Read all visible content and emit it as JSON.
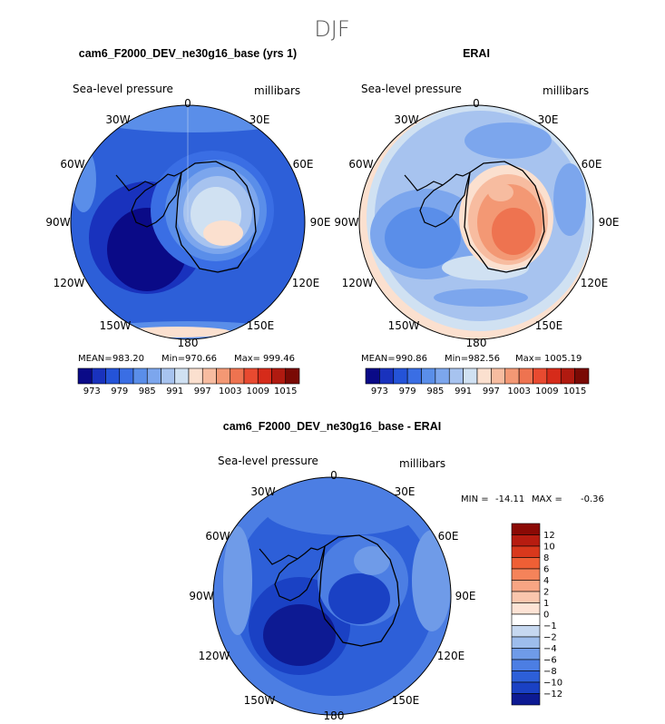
{
  "figure": {
    "suptitle": "DJF",
    "variable": "Sea-level pressure",
    "units": "millibars",
    "lon_labels": [
      "0",
      "30E",
      "60E",
      "90E",
      "120E",
      "150E",
      "180",
      "150W",
      "120W",
      "90W",
      "60W",
      "30W"
    ]
  },
  "chart_data": [
    {
      "type": "heatmap",
      "projection": "south-polar-stereographic",
      "title": "cam6_F2000_DEV_ne30g16_base (yrs 1)",
      "subtitle_left": "Sea-level pressure",
      "subtitle_right": "millibars",
      "stats": {
        "mean_label": "MEAN=",
        "mean": "983.20",
        "min_label": "Min=",
        "min": "970.66",
        "max_label": "Max=",
        "max": "999.46"
      },
      "colorbar": {
        "orientation": "horizontal",
        "levels": [
          970,
          973,
          976,
          979,
          982,
          985,
          988,
          991,
          994,
          997,
          1000,
          1003,
          1006,
          1009,
          1012,
          1015
        ],
        "tick_labels": [
          "973",
          "979",
          "985",
          "991",
          "997",
          "1003",
          "1009",
          "1015"
        ],
        "colors": [
          "#0a0a87",
          "#1932bd",
          "#2453d8",
          "#3a6ee4",
          "#5a8ee9",
          "#7ca6ed",
          "#a7c3ef",
          "#d0e1f2",
          "#fbe0cf",
          "#f7bca0",
          "#f39874",
          "#ee7350",
          "#e84a30",
          "#d62b1a",
          "#b01a10",
          "#7a0a05"
        ]
      }
    },
    {
      "type": "heatmap",
      "projection": "south-polar-stereographic",
      "title": "ERAI",
      "subtitle_left": "Sea-level pressure",
      "subtitle_right": "millibars",
      "stats": {
        "mean_label": "MEAN=",
        "mean": "990.86",
        "min_label": "Min=",
        "min": "982.56",
        "max_label": "Max=",
        "max": "1005.19"
      },
      "colorbar": {
        "orientation": "horizontal",
        "levels": [
          970,
          973,
          976,
          979,
          982,
          985,
          988,
          991,
          994,
          997,
          1000,
          1003,
          1006,
          1009,
          1012,
          1015
        ],
        "tick_labels": [
          "973",
          "979",
          "985",
          "991",
          "997",
          "1003",
          "1009",
          "1015"
        ],
        "colors": [
          "#0a0a87",
          "#1932bd",
          "#2453d8",
          "#3a6ee4",
          "#5a8ee9",
          "#7ca6ed",
          "#a7c3ef",
          "#d0e1f2",
          "#fbe0cf",
          "#f7bca0",
          "#f39874",
          "#ee7350",
          "#e84a30",
          "#d62b1a",
          "#b01a10",
          "#7a0a05"
        ]
      }
    },
    {
      "type": "heatmap",
      "projection": "south-polar-stereographic",
      "title": "cam6_F2000_DEV_ne30g16_base - ERAI",
      "subtitle_left": "Sea-level pressure",
      "subtitle_right": "millibars",
      "stats": {
        "min_label": "MIN =",
        "min": "-14.11",
        "max_label": "MAX =",
        "max": "-0.36"
      },
      "colorbar": {
        "orientation": "vertical",
        "levels": [
          -12,
          -10,
          -8,
          -6,
          -4,
          -2,
          -1,
          0,
          1,
          2,
          4,
          6,
          8,
          10,
          12
        ],
        "tick_labels": [
          "12",
          "10",
          "8",
          "6",
          "4",
          "2",
          "1",
          "0",
          "−1",
          "−2",
          "−4",
          "−6",
          "−8",
          "−10",
          "−12"
        ],
        "colors": [
          "#8b0a05",
          "#b71c10",
          "#d9381c",
          "#ef5f35",
          "#f5835a",
          "#f8a583",
          "#fac6ad",
          "#fde3d5",
          "#ffffff",
          "#c6d8f0",
          "#9dbdec",
          "#6f9be8",
          "#4c7ee3",
          "#2d5fd8",
          "#1a41c4",
          "#0d1a93"
        ]
      }
    }
  ]
}
